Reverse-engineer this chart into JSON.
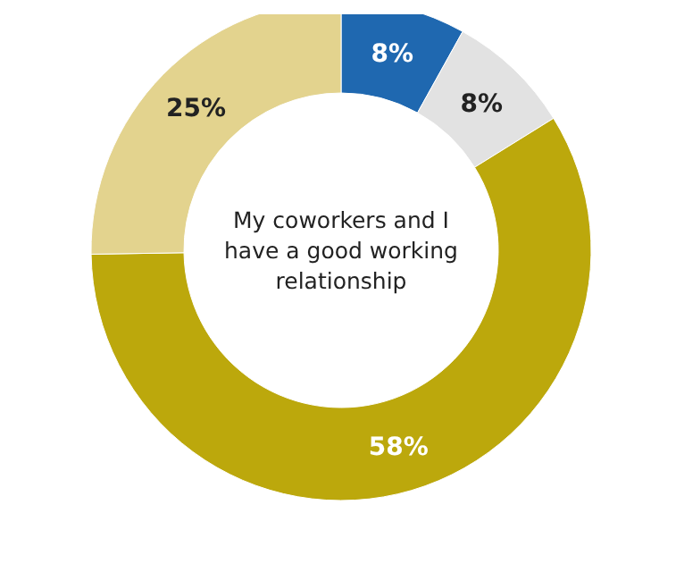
{
  "chart_data": {
    "type": "donut",
    "title": "My coworkers and I have a good working relationship",
    "categories": [
      null,
      null,
      null,
      null
    ],
    "values": [
      8,
      8,
      58,
      25
    ],
    "colors": [
      "#1f68b0",
      "#e2e2e2",
      "#bca80c",
      "#e3d38e"
    ],
    "value_labels": [
      "8%",
      "8%",
      "58%",
      "25%"
    ]
  }
}
